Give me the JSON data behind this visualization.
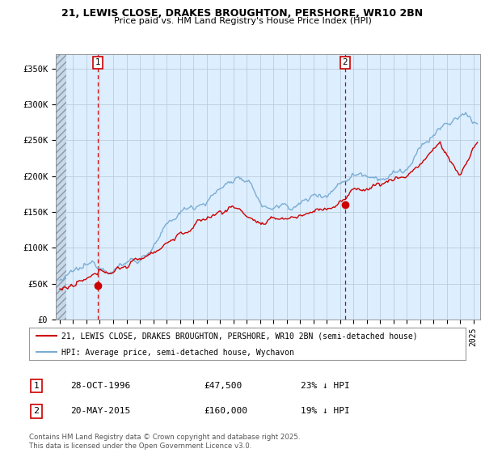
{
  "title_line1": "21, LEWIS CLOSE, DRAKES BROUGHTON, PERSHORE, WR10 2BN",
  "title_line2": "Price paid vs. HM Land Registry's House Price Index (HPI)",
  "xlim_start": 1993.7,
  "xlim_end": 2025.5,
  "ylim": [
    0,
    370000
  ],
  "yticks": [
    0,
    50000,
    100000,
    150000,
    200000,
    250000,
    300000,
    350000
  ],
  "ytick_labels": [
    "£0",
    "£50K",
    "£100K",
    "£150K",
    "£200K",
    "£250K",
    "£300K",
    "£350K"
  ],
  "purchase1_x": 1996.83,
  "purchase1_y": 47500,
  "purchase2_x": 2015.38,
  "purchase2_y": 160000,
  "purchase1_date": "28-OCT-1996",
  "purchase1_price": "£47,500",
  "purchase1_hpi": "23% ↓ HPI",
  "purchase2_date": "20-MAY-2015",
  "purchase2_price": "£160,000",
  "purchase2_hpi": "19% ↓ HPI",
  "line_color_property": "#cc0000",
  "line_color_hpi": "#7aadd4",
  "legend_label_property": "21, LEWIS CLOSE, DRAKES BROUGHTON, PERSHORE, WR10 2BN (semi-detached house)",
  "legend_label_hpi": "HPI: Average price, semi-detached house, Wychavon",
  "footer": "Contains HM Land Registry data © Crown copyright and database right 2025.\nThis data is licensed under the Open Government Licence v3.0.",
  "chart_bg": "#ddeeff",
  "grid_color": "#bbccdd"
}
